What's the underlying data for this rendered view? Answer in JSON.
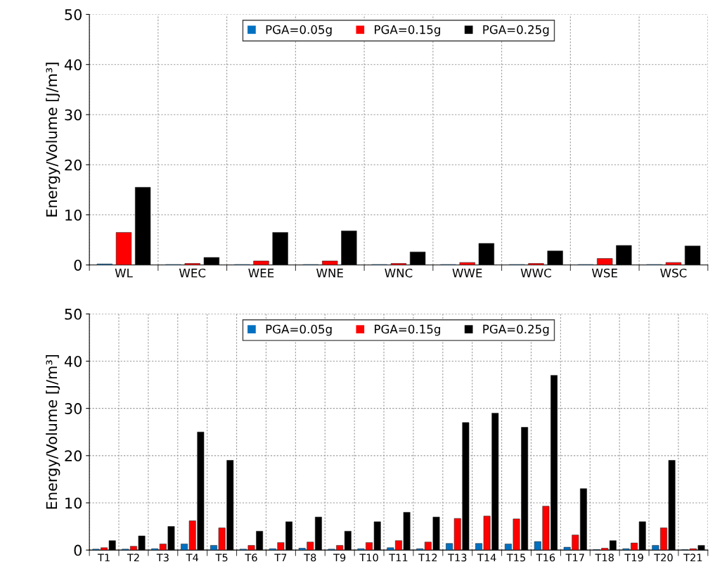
{
  "chart_data": [
    {
      "type": "bar",
      "ylabel": "Energy/Volume [J/m³]",
      "categories": [
        "WL",
        "WEC",
        "WEE",
        "WNE",
        "WNC",
        "WWE",
        "WWC",
        "WSE",
        "WSC"
      ],
      "ylim": [
        0,
        50
      ],
      "yticks": [
        0,
        10,
        20,
        30,
        40,
        50
      ],
      "grid": true,
      "legend": "top",
      "series": [
        {
          "name": "PGA=0.05g",
          "color": "#0070c0",
          "values": [
            0.2,
            0.1,
            0.1,
            0.1,
            0.1,
            0.1,
            0.1,
            0.1,
            0.1
          ]
        },
        {
          "name": "PGA=0.15g",
          "color": "#ff0000",
          "values": [
            6.5,
            0.3,
            0.8,
            0.8,
            0.3,
            0.5,
            0.3,
            1.3,
            0.5
          ]
        },
        {
          "name": "PGA=0.25g",
          "color": "#000000",
          "values": [
            15.5,
            1.5,
            6.5,
            6.8,
            2.6,
            4.3,
            2.8,
            3.9,
            3.8
          ]
        }
      ]
    },
    {
      "type": "bar",
      "ylabel": "Energy/Volume [J/m³]",
      "categories": [
        "T1",
        "T2",
        "T3",
        "T4",
        "T5",
        "T6",
        "T7",
        "T8",
        "T9",
        "T10",
        "T11",
        "T12",
        "T13",
        "T14",
        "T15",
        "T16",
        "T17",
        "T18",
        "T19",
        "T20",
        "T21"
      ],
      "ylim": [
        0,
        50
      ],
      "yticks": [
        0,
        10,
        20,
        30,
        40,
        50
      ],
      "grid": true,
      "legend": "top",
      "series": [
        {
          "name": "PGA=0.05g",
          "color": "#0070c0",
          "values": [
            0.2,
            0.2,
            0.3,
            1.3,
            1.0,
            0.2,
            0.3,
            0.4,
            0.2,
            0.3,
            0.5,
            0.3,
            1.4,
            1.4,
            1.3,
            1.8,
            0.6,
            0.1,
            0.3,
            1.0,
            0.1
          ]
        },
        {
          "name": "PGA=0.15g",
          "color": "#ff0000",
          "values": [
            0.5,
            0.8,
            1.3,
            6.2,
            4.7,
            1.0,
            1.6,
            1.7,
            1.0,
            1.6,
            2.0,
            1.7,
            6.7,
            7.2,
            6.6,
            9.3,
            3.2,
            0.4,
            1.5,
            4.7,
            0.3
          ]
        },
        {
          "name": "PGA=0.25g",
          "color": "#000000",
          "values": [
            2,
            3,
            5,
            25,
            19,
            4,
            6,
            7,
            4,
            6,
            8,
            7,
            27,
            29,
            26,
            37,
            13,
            2,
            6,
            19,
            1
          ]
        }
      ]
    }
  ]
}
